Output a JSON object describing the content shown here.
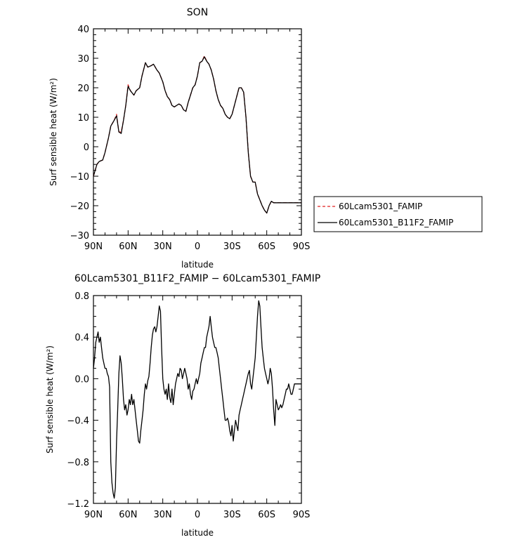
{
  "chart_data": [
    {
      "type": "line",
      "title": "SON",
      "xlabel": "latitude",
      "ylabel": "Surf sensible heat (W/m²)",
      "xlim": [
        90,
        -90
      ],
      "ylim": [
        -30,
        40
      ],
      "x_ticks": [
        90,
        60,
        30,
        0,
        -30,
        -60,
        -90
      ],
      "x_tick_labels": [
        "90N",
        "60N",
        "30N",
        "0",
        "30S",
        "60S",
        "90S"
      ],
      "y_ticks": [
        -30,
        -20,
        -10,
        0,
        10,
        20,
        30,
        40
      ],
      "y_tick_labels": [
        "−30",
        "−20",
        "−10",
        "0",
        "10",
        "20",
        "30",
        "40"
      ],
      "legend_position": "right-outside-bottom",
      "series": [
        {
          "name": "60Lcam5301_FAMIP",
          "color": "#e02020",
          "style": "dashed",
          "x": [
            90,
            87,
            85,
            82,
            80,
            77,
            75,
            72,
            70,
            68,
            66,
            64,
            62,
            60,
            58,
            55,
            53,
            50,
            48,
            45,
            43,
            40,
            38,
            35,
            33,
            30,
            28,
            26,
            24,
            22,
            20,
            18,
            16,
            14,
            12,
            10,
            8,
            6,
            4,
            2,
            0,
            -2,
            -4,
            -6,
            -8,
            -10,
            -12,
            -14,
            -16,
            -18,
            -20,
            -22,
            -24,
            -26,
            -28,
            -30,
            -32,
            -34,
            -36,
            -38,
            -40,
            -42,
            -44,
            -46,
            -48,
            -50,
            -52,
            -54,
            -56,
            -58,
            -60,
            -62,
            -64,
            -66,
            -68,
            -70,
            -72,
            -74,
            -76,
            -78,
            -80,
            -82,
            -84,
            -86,
            -88,
            -90
          ],
          "y": [
            -10,
            -6,
            -5,
            -4.5,
            -2,
            3,
            7,
            9,
            11,
            5,
            5,
            9,
            14,
            21,
            19,
            17.5,
            19,
            20,
            24,
            28.5,
            27,
            27.5,
            28,
            26,
            25,
            22,
            19,
            17,
            16,
            14,
            13.5,
            14,
            14.5,
            14,
            12.5,
            12,
            15,
            17.5,
            20,
            21,
            24,
            28.5,
            29,
            30.8,
            29,
            28,
            26,
            23,
            19,
            16,
            14,
            13,
            11,
            10,
            9.5,
            11,
            14,
            17,
            20,
            20,
            18.5,
            10,
            -2,
            -10,
            -12,
            -12,
            -16,
            -18,
            -20,
            -21.5,
            -22.5,
            -20,
            -18.5,
            -19,
            -19,
            -19,
            -19,
            -19,
            -19,
            -19,
            -19,
            -19,
            -19,
            -19,
            -19,
            -19
          ]
        },
        {
          "name": "60Lcam5301_B11F2_FAMIP",
          "color": "#000000",
          "style": "solid",
          "x": [
            90,
            87,
            85,
            82,
            80,
            77,
            75,
            72,
            70,
            68,
            66,
            64,
            62,
            60,
            58,
            55,
            53,
            50,
            48,
            45,
            43,
            40,
            38,
            35,
            33,
            30,
            28,
            26,
            24,
            22,
            20,
            18,
            16,
            14,
            12,
            10,
            8,
            6,
            4,
            2,
            0,
            -2,
            -4,
            -6,
            -8,
            -10,
            -12,
            -14,
            -16,
            -18,
            -20,
            -22,
            -24,
            -26,
            -28,
            -30,
            -32,
            -34,
            -36,
            -38,
            -40,
            -42,
            -44,
            -46,
            -48,
            -50,
            -52,
            -54,
            -56,
            -58,
            -60,
            -62,
            -64,
            -66,
            -68,
            -70,
            -72,
            -74,
            -76,
            -78,
            -80,
            -82,
            -84,
            -86,
            -88,
            -90
          ],
          "y": [
            -10,
            -6,
            -5,
            -4.5,
            -2,
            3,
            7,
            9,
            10.5,
            5,
            4.5,
            9,
            14,
            20.5,
            19,
            17.5,
            19,
            20,
            24,
            28.5,
            27,
            27.5,
            28,
            26,
            25,
            22,
            19,
            17,
            16,
            14,
            13.5,
            14,
            14.5,
            14,
            12.5,
            12,
            15,
            17.5,
            20,
            21,
            24,
            28.5,
            29,
            30.5,
            29,
            28,
            26,
            23,
            19,
            16,
            14,
            13,
            11,
            10,
            9.5,
            11,
            14,
            17,
            20,
            20,
            18.5,
            10,
            -2,
            -10,
            -12,
            -12,
            -16,
            -18,
            -20,
            -21.5,
            -22.5,
            -20,
            -18.5,
            -19,
            -19,
            -19,
            -19,
            -19,
            -19,
            -19,
            -19,
            -19,
            -19,
            -19,
            -19,
            -19
          ]
        }
      ]
    },
    {
      "type": "line",
      "title": "60Lcam5301_B11F2_FAMIP − 60Lcam5301_FAMIP",
      "xlabel": "latitude",
      "ylabel": "Surf sensible heat (W/m²)",
      "xlim": [
        90,
        -90
      ],
      "ylim": [
        -1.2,
        0.8
      ],
      "x_ticks": [
        90,
        60,
        30,
        0,
        -30,
        -60,
        -90
      ],
      "x_tick_labels": [
        "90N",
        "60N",
        "30N",
        "0",
        "30S",
        "60S",
        "90S"
      ],
      "y_ticks": [
        -1.2,
        -0.8,
        -0.4,
        0.0,
        0.4,
        0.8
      ],
      "y_tick_labels": [
        "−1.2",
        "−0.8",
        "−0.4",
        "0.0",
        "0.4",
        "0.8"
      ],
      "series": [
        {
          "name": "",
          "color": "#000000",
          "style": "solid",
          "x": [
            90,
            89,
            88,
            87,
            86,
            85,
            84,
            83,
            82,
            81,
            80,
            79,
            78,
            77,
            76,
            75,
            74,
            73,
            72,
            71,
            70,
            69,
            68,
            67,
            66,
            65,
            64,
            63,
            62,
            61,
            60,
            59,
            58,
            57,
            56,
            55,
            54,
            53,
            52,
            51,
            50,
            49,
            48,
            47,
            46,
            45,
            44,
            43,
            42,
            41,
            40,
            39,
            38,
            37,
            36,
            35,
            34,
            33,
            32,
            31,
            30,
            29,
            28,
            27,
            26,
            25,
            24,
            23,
            22,
            21,
            20,
            19,
            18,
            17,
            16,
            15,
            14,
            13,
            12,
            11,
            10,
            9,
            8,
            7,
            6,
            5,
            4,
            3,
            2,
            1,
            0,
            -1,
            -2,
            -3,
            -4,
            -5,
            -6,
            -7,
            -8,
            -9,
            -10,
            -11,
            -12,
            -13,
            -14,
            -15,
            -16,
            -17,
            -18,
            -19,
            -20,
            -21,
            -22,
            -23,
            -24,
            -25,
            -26,
            -27,
            -28,
            -29,
            -30,
            -31,
            -32,
            -33,
            -34,
            -35,
            -36,
            -37,
            -38,
            -39,
            -40,
            -41,
            -42,
            -43,
            -44,
            -45,
            -46,
            -47,
            -48,
            -49,
            -50,
            -51,
            -52,
            -53,
            -54,
            -55,
            -56,
            -57,
            -58,
            -59,
            -60,
            -61,
            -62,
            -63,
            -64,
            -65,
            -66,
            -67,
            -68,
            -69,
            -70,
            -71,
            -72,
            -73,
            -74,
            -75,
            -76,
            -77,
            -78,
            -79,
            -80,
            -81,
            -82,
            -83,
            -84,
            -85,
            -86,
            -87,
            -88,
            -89,
            -90
          ],
          "y": [
            0.1,
            0.2,
            0.35,
            0.4,
            0.45,
            0.35,
            0.4,
            0.3,
            0.2,
            0.15,
            0.1,
            0.1,
            0.05,
            0.02,
            -0.08,
            -0.8,
            -1.0,
            -1.1,
            -1.15,
            -1.05,
            -0.6,
            -0.3,
            0.05,
            0.22,
            0.15,
            0.0,
            -0.2,
            -0.3,
            -0.25,
            -0.35,
            -0.3,
            -0.2,
            -0.25,
            -0.15,
            -0.25,
            -0.2,
            -0.3,
            -0.4,
            -0.5,
            -0.6,
            -0.62,
            -0.5,
            -0.4,
            -0.3,
            -0.15,
            -0.05,
            -0.1,
            -0.02,
            0.02,
            0.15,
            0.3,
            0.42,
            0.48,
            0.5,
            0.45,
            0.5,
            0.6,
            0.7,
            0.65,
            0.3,
            0.0,
            -0.1,
            -0.15,
            -0.1,
            -0.2,
            -0.05,
            -0.18,
            -0.23,
            -0.1,
            -0.25,
            -0.15,
            -0.05,
            0.0,
            0.05,
            0.02,
            0.1,
            0.08,
            0.0,
            0.05,
            0.1,
            0.05,
            0.0,
            -0.1,
            -0.05,
            -0.15,
            -0.2,
            -0.12,
            -0.1,
            -0.05,
            0.0,
            -0.05,
            0.0,
            0.05,
            0.15,
            0.2,
            0.25,
            0.3,
            0.3,
            0.4,
            0.45,
            0.5,
            0.6,
            0.5,
            0.4,
            0.35,
            0.3,
            0.3,
            0.25,
            0.2,
            0.1,
            0.0,
            -0.1,
            -0.2,
            -0.3,
            -0.4,
            -0.4,
            -0.38,
            -0.42,
            -0.5,
            -0.55,
            -0.45,
            -0.6,
            -0.5,
            -0.4,
            -0.45,
            -0.5,
            -0.35,
            -0.3,
            -0.25,
            -0.2,
            -0.15,
            -0.1,
            -0.05,
            0.0,
            0.05,
            0.08,
            -0.05,
            -0.1,
            0.0,
            0.1,
            0.2,
            0.4,
            0.6,
            0.75,
            0.7,
            0.5,
            0.3,
            0.2,
            0.1,
            0.05,
            0.0,
            -0.05,
            0.0,
            0.1,
            0.05,
            -0.1,
            -0.3,
            -0.45,
            -0.2,
            -0.25,
            -0.3,
            -0.28,
            -0.25,
            -0.28,
            -0.25,
            -0.2,
            -0.15,
            -0.1,
            -0.1,
            -0.05,
            -0.1,
            -0.15,
            -0.15,
            -0.1,
            -0.05,
            -0.05,
            -0.05,
            -0.05,
            -0.05,
            -0.05,
            -0.05
          ]
        }
      ]
    }
  ]
}
